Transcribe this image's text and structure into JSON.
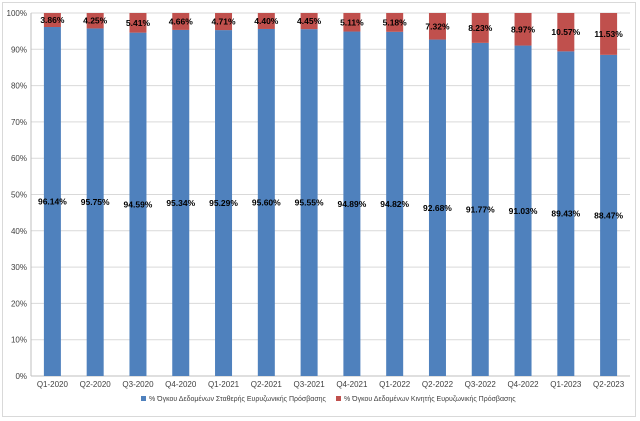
{
  "chart_data": {
    "type": "bar",
    "stacked": true,
    "percent_stacked": true,
    "categories": [
      "Q1-2020",
      "Q2-2020",
      "Q3-2020",
      "Q4-2020",
      "Q1-2021",
      "Q2-2021",
      "Q3-2021",
      "Q4-2021",
      "Q1-2022",
      "Q2-2022",
      "Q3-2022",
      "Q4-2022",
      "Q1-2023",
      "Q2-2023"
    ],
    "series": [
      {
        "name": "% Όγκου Δεδομένων Σταθερής Ευρυζωνικής Πρόσβασης",
        "color": "#4f81bd",
        "values": [
          96.14,
          95.75,
          94.59,
          95.34,
          95.29,
          95.6,
          95.55,
          94.89,
          94.82,
          92.68,
          91.77,
          91.03,
          89.43,
          88.47
        ],
        "labels": [
          "96.14%",
          "95.75%",
          "94.59%",
          "95.34%",
          "95.29%",
          "95.60%",
          "95.55%",
          "94.89%",
          "94.82%",
          "92.68%",
          "91.77%",
          "91.03%",
          "89.43%",
          "88.47%"
        ]
      },
      {
        "name": "% Όγκου Δεδομένων Κινητής Ευρυζωνικής Πρόσβασης",
        "color": "#c0504d",
        "values": [
          3.86,
          4.25,
          5.41,
          4.66,
          4.71,
          4.4,
          4.45,
          5.11,
          5.18,
          7.32,
          8.23,
          8.97,
          10.57,
          11.53
        ],
        "labels": [
          "3.86%",
          "4.25%",
          "5.41%",
          "4.66%",
          "4.71%",
          "4.40%",
          "4.45%",
          "5.11%",
          "5.18%",
          "7.32%",
          "8.23%",
          "8.97%",
          "10.57%",
          "11.53%"
        ]
      }
    ],
    "yticks": [
      "0%",
      "10%",
      "20%",
      "30%",
      "40%",
      "50%",
      "60%",
      "70%",
      "80%",
      "90%",
      "100%"
    ],
    "ylim": [
      0,
      100
    ],
    "grid": true,
    "legend_position": "bottom"
  }
}
